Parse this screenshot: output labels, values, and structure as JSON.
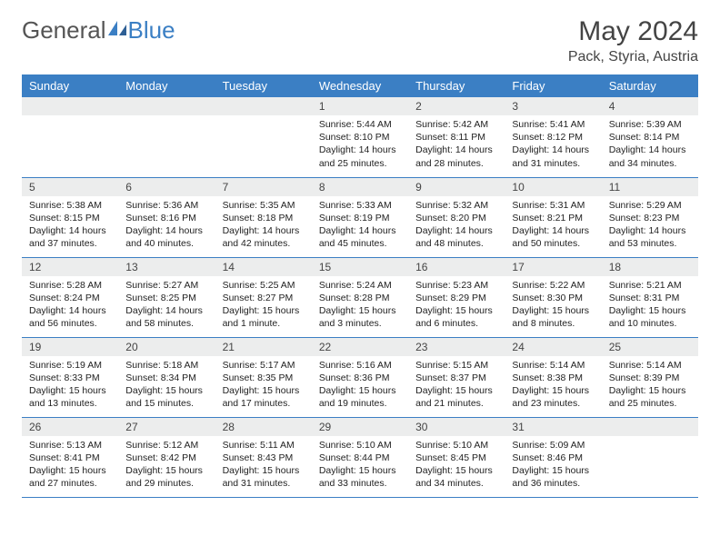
{
  "brand": {
    "part1": "General",
    "part2": "Blue"
  },
  "title": "May 2024",
  "subtitle": "Pack, Styria, Austria",
  "colors": {
    "header_bg": "#3b7fc4",
    "daynum_bg": "#eceded",
    "border": "#3b7fc4"
  },
  "daysOfWeek": [
    "Sunday",
    "Monday",
    "Tuesday",
    "Wednesday",
    "Thursday",
    "Friday",
    "Saturday"
  ],
  "weeks": [
    [
      null,
      null,
      null,
      {
        "n": "1",
        "sr": "Sunrise: 5:44 AM",
        "ss": "Sunset: 8:10 PM",
        "dl": "Daylight: 14 hours and 25 minutes."
      },
      {
        "n": "2",
        "sr": "Sunrise: 5:42 AM",
        "ss": "Sunset: 8:11 PM",
        "dl": "Daylight: 14 hours and 28 minutes."
      },
      {
        "n": "3",
        "sr": "Sunrise: 5:41 AM",
        "ss": "Sunset: 8:12 PM",
        "dl": "Daylight: 14 hours and 31 minutes."
      },
      {
        "n": "4",
        "sr": "Sunrise: 5:39 AM",
        "ss": "Sunset: 8:14 PM",
        "dl": "Daylight: 14 hours and 34 minutes."
      }
    ],
    [
      {
        "n": "5",
        "sr": "Sunrise: 5:38 AM",
        "ss": "Sunset: 8:15 PM",
        "dl": "Daylight: 14 hours and 37 minutes."
      },
      {
        "n": "6",
        "sr": "Sunrise: 5:36 AM",
        "ss": "Sunset: 8:16 PM",
        "dl": "Daylight: 14 hours and 40 minutes."
      },
      {
        "n": "7",
        "sr": "Sunrise: 5:35 AM",
        "ss": "Sunset: 8:18 PM",
        "dl": "Daylight: 14 hours and 42 minutes."
      },
      {
        "n": "8",
        "sr": "Sunrise: 5:33 AM",
        "ss": "Sunset: 8:19 PM",
        "dl": "Daylight: 14 hours and 45 minutes."
      },
      {
        "n": "9",
        "sr": "Sunrise: 5:32 AM",
        "ss": "Sunset: 8:20 PM",
        "dl": "Daylight: 14 hours and 48 minutes."
      },
      {
        "n": "10",
        "sr": "Sunrise: 5:31 AM",
        "ss": "Sunset: 8:21 PM",
        "dl": "Daylight: 14 hours and 50 minutes."
      },
      {
        "n": "11",
        "sr": "Sunrise: 5:29 AM",
        "ss": "Sunset: 8:23 PM",
        "dl": "Daylight: 14 hours and 53 minutes."
      }
    ],
    [
      {
        "n": "12",
        "sr": "Sunrise: 5:28 AM",
        "ss": "Sunset: 8:24 PM",
        "dl": "Daylight: 14 hours and 56 minutes."
      },
      {
        "n": "13",
        "sr": "Sunrise: 5:27 AM",
        "ss": "Sunset: 8:25 PM",
        "dl": "Daylight: 14 hours and 58 minutes."
      },
      {
        "n": "14",
        "sr": "Sunrise: 5:25 AM",
        "ss": "Sunset: 8:27 PM",
        "dl": "Daylight: 15 hours and 1 minute."
      },
      {
        "n": "15",
        "sr": "Sunrise: 5:24 AM",
        "ss": "Sunset: 8:28 PM",
        "dl": "Daylight: 15 hours and 3 minutes."
      },
      {
        "n": "16",
        "sr": "Sunrise: 5:23 AM",
        "ss": "Sunset: 8:29 PM",
        "dl": "Daylight: 15 hours and 6 minutes."
      },
      {
        "n": "17",
        "sr": "Sunrise: 5:22 AM",
        "ss": "Sunset: 8:30 PM",
        "dl": "Daylight: 15 hours and 8 minutes."
      },
      {
        "n": "18",
        "sr": "Sunrise: 5:21 AM",
        "ss": "Sunset: 8:31 PM",
        "dl": "Daylight: 15 hours and 10 minutes."
      }
    ],
    [
      {
        "n": "19",
        "sr": "Sunrise: 5:19 AM",
        "ss": "Sunset: 8:33 PM",
        "dl": "Daylight: 15 hours and 13 minutes."
      },
      {
        "n": "20",
        "sr": "Sunrise: 5:18 AM",
        "ss": "Sunset: 8:34 PM",
        "dl": "Daylight: 15 hours and 15 minutes."
      },
      {
        "n": "21",
        "sr": "Sunrise: 5:17 AM",
        "ss": "Sunset: 8:35 PM",
        "dl": "Daylight: 15 hours and 17 minutes."
      },
      {
        "n": "22",
        "sr": "Sunrise: 5:16 AM",
        "ss": "Sunset: 8:36 PM",
        "dl": "Daylight: 15 hours and 19 minutes."
      },
      {
        "n": "23",
        "sr": "Sunrise: 5:15 AM",
        "ss": "Sunset: 8:37 PM",
        "dl": "Daylight: 15 hours and 21 minutes."
      },
      {
        "n": "24",
        "sr": "Sunrise: 5:14 AM",
        "ss": "Sunset: 8:38 PM",
        "dl": "Daylight: 15 hours and 23 minutes."
      },
      {
        "n": "25",
        "sr": "Sunrise: 5:14 AM",
        "ss": "Sunset: 8:39 PM",
        "dl": "Daylight: 15 hours and 25 minutes."
      }
    ],
    [
      {
        "n": "26",
        "sr": "Sunrise: 5:13 AM",
        "ss": "Sunset: 8:41 PM",
        "dl": "Daylight: 15 hours and 27 minutes."
      },
      {
        "n": "27",
        "sr": "Sunrise: 5:12 AM",
        "ss": "Sunset: 8:42 PM",
        "dl": "Daylight: 15 hours and 29 minutes."
      },
      {
        "n": "28",
        "sr": "Sunrise: 5:11 AM",
        "ss": "Sunset: 8:43 PM",
        "dl": "Daylight: 15 hours and 31 minutes."
      },
      {
        "n": "29",
        "sr": "Sunrise: 5:10 AM",
        "ss": "Sunset: 8:44 PM",
        "dl": "Daylight: 15 hours and 33 minutes."
      },
      {
        "n": "30",
        "sr": "Sunrise: 5:10 AM",
        "ss": "Sunset: 8:45 PM",
        "dl": "Daylight: 15 hours and 34 minutes."
      },
      {
        "n": "31",
        "sr": "Sunrise: 5:09 AM",
        "ss": "Sunset: 8:46 PM",
        "dl": "Daylight: 15 hours and 36 minutes."
      },
      null
    ]
  ]
}
